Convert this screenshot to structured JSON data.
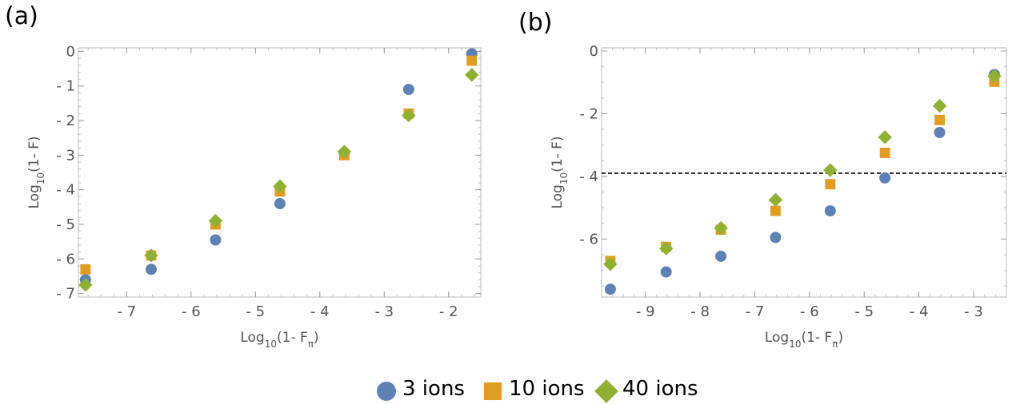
{
  "chart_data": [
    {
      "panel": "(a)",
      "type": "scatter",
      "xlabel": "Log10(1- Fπ)",
      "ylabel": "Log10(1- F)",
      "xlim": [
        -7.75,
        -1.5
      ],
      "ylim": [
        -7.1,
        0.1
      ],
      "xticks": [
        -7,
        -6,
        -5,
        -4,
        -3,
        -2
      ],
      "xtick_labels": [
        "- 7",
        "- 6",
        "- 5",
        "- 4",
        "- 3",
        "- 2"
      ],
      "yticks": [
        0,
        -1,
        -2,
        -3,
        -4,
        -5,
        -6,
        -7
      ],
      "ytick_labels": [
        "0",
        "- 1",
        "- 2",
        "- 3",
        "- 4",
        "- 5",
        "- 6",
        "- 7"
      ],
      "grid": false,
      "series": [
        {
          "name": "3 ions",
          "marker": "circle",
          "color": "#5e81b5",
          "x": [
            -7.64,
            -6.62,
            -5.62,
            -4.62,
            -3.62,
            -2.62,
            -1.64
          ],
          "y": [
            -6.6,
            -6.3,
            -5.45,
            -4.4,
            -2.95,
            -1.1,
            -0.07
          ]
        },
        {
          "name": "10 ions",
          "marker": "square",
          "color": "#e19c24",
          "x": [
            -7.64,
            -6.62,
            -5.62,
            -4.62,
            -3.62,
            -2.62,
            -1.64
          ],
          "y": [
            -6.3,
            -5.9,
            -5.0,
            -4.05,
            -3.0,
            -1.8,
            -0.27
          ]
        },
        {
          "name": "40 ions",
          "marker": "diamond",
          "color": "#8fb032",
          "x": [
            -7.64,
            -6.62,
            -5.62,
            -4.62,
            -3.62,
            -2.62,
            -1.64
          ],
          "y": [
            -6.75,
            -5.9,
            -4.9,
            -3.9,
            -2.9,
            -1.85,
            -0.68
          ]
        }
      ]
    },
    {
      "panel": "(b)",
      "type": "scatter",
      "xlabel": "Log10(1- Fπ)",
      "ylabel": "Log10(1- F)",
      "xlim": [
        -9.8,
        -2.4
      ],
      "ylim": [
        -7.85,
        0.1
      ],
      "xticks": [
        -9,
        -8,
        -7,
        -6,
        -5,
        -4,
        -3
      ],
      "xtick_labels": [
        "- 9",
        "- 8",
        "- 7",
        "- 6",
        "- 5",
        "- 4",
        "- 3"
      ],
      "yticks": [
        0,
        -2,
        -4,
        -6
      ],
      "ytick_labels": [
        "0",
        "- 2",
        "- 4",
        "- 6"
      ],
      "grid": false,
      "hline": -3.9,
      "series": [
        {
          "name": "3 ions",
          "marker": "circle",
          "color": "#5e81b5",
          "x": [
            -9.64,
            -8.62,
            -7.62,
            -6.62,
            -5.62,
            -4.62,
            -3.62,
            -2.62
          ],
          "y": [
            -7.6,
            -7.05,
            -6.55,
            -5.95,
            -5.1,
            -4.05,
            -2.6,
            -0.75
          ]
        },
        {
          "name": "10 ions",
          "marker": "square",
          "color": "#e19c24",
          "x": [
            -9.64,
            -8.62,
            -7.62,
            -6.62,
            -5.62,
            -4.62,
            -3.62,
            -2.62
          ],
          "y": [
            -6.7,
            -6.25,
            -5.7,
            -5.1,
            -4.25,
            -3.25,
            -2.2,
            -0.98
          ]
        },
        {
          "name": "40 ions",
          "marker": "diamond",
          "color": "#8fb032",
          "x": [
            -9.64,
            -8.62,
            -7.62,
            -6.62,
            -5.62,
            -4.62,
            -3.62,
            -2.62
          ],
          "y": [
            -6.8,
            -6.3,
            -5.65,
            -4.75,
            -3.8,
            -2.75,
            -1.75,
            -0.8
          ]
        }
      ]
    }
  ],
  "legend": {
    "placement": "bottom-center",
    "items": [
      {
        "label": "3 ions",
        "marker": "circle",
        "color": "#5e81b5"
      },
      {
        "label": "10 ions",
        "marker": "square",
        "color": "#e19c24"
      },
      {
        "label": "40 ions",
        "marker": "diamond",
        "color": "#8fb032"
      }
    ]
  }
}
